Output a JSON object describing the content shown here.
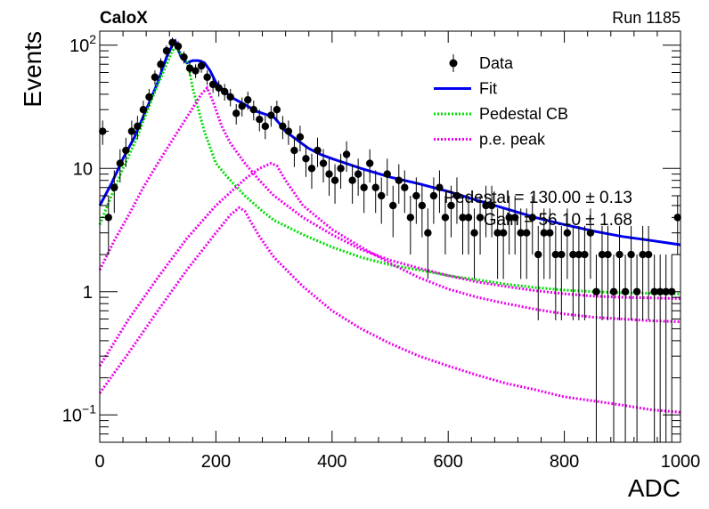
{
  "header": {
    "left_label": "CaloX",
    "right_label": "Run 1185"
  },
  "chart_data": {
    "type": "scatter",
    "xlabel": "ADC",
    "ylabel": "Events",
    "xlim": [
      0,
      1000
    ],
    "ylim": [
      0.06,
      130
    ],
    "y_log": true,
    "x_ticks": [
      0,
      200,
      400,
      600,
      800,
      1000
    ],
    "x_tick_labels": [
      "0",
      "200",
      "400",
      "600",
      "800",
      "1000"
    ],
    "y_ticks": [
      {
        "value": 100,
        "base": "10",
        "exp": "2"
      },
      {
        "value": 10,
        "base": "10",
        "exp": ""
      },
      {
        "value": 1,
        "base": "1",
        "exp": ""
      },
      {
        "value": 0.1,
        "base": "10",
        "exp": "−1"
      }
    ],
    "legend": {
      "placement": "top-right",
      "entries": [
        {
          "label": "Data",
          "style": "marker",
          "color": "#000000"
        },
        {
          "label": "Fit",
          "style": "solid",
          "color": "#0000ee"
        },
        {
          "label": "Pedestal CB",
          "style": "dotted",
          "color": "#00dd00"
        },
        {
          "label": "p.e. peak",
          "style": "dotted",
          "color": "#ee00ee"
        }
      ]
    },
    "annotations": [
      "Pedestal = 130.00 ± 0.13",
      "Gain = 56.10 ± 1.68"
    ],
    "data_x": [
      5,
      15,
      25,
      35,
      45,
      55,
      65,
      75,
      85,
      95,
      105,
      115,
      125,
      135,
      145,
      155,
      165,
      175,
      185,
      195,
      205,
      215,
      225,
      235,
      245,
      255,
      265,
      275,
      285,
      295,
      305,
      315,
      325,
      335,
      345,
      355,
      365,
      375,
      385,
      395,
      405,
      415,
      425,
      435,
      445,
      455,
      465,
      475,
      485,
      495,
      505,
      515,
      525,
      535,
      545,
      555,
      565,
      575,
      585,
      595,
      605,
      615,
      625,
      635,
      645,
      655,
      665,
      675,
      685,
      695,
      705,
      715,
      725,
      735,
      745,
      755,
      765,
      775,
      785,
      795,
      805,
      815,
      825,
      835,
      845,
      855,
      865,
      875,
      885,
      895,
      905,
      915,
      925,
      935,
      945,
      955,
      965,
      975,
      985,
      995
    ],
    "data_y": [
      20,
      4,
      7,
      11,
      14,
      20,
      22,
      30,
      38,
      55,
      70,
      90,
      105,
      98,
      80,
      65,
      62,
      68,
      55,
      48,
      45,
      42,
      38,
      28,
      32,
      36,
      30,
      25,
      22,
      27,
      30,
      22,
      20,
      14,
      18,
      12,
      10,
      14,
      11,
      9,
      8,
      10,
      13,
      8,
      9,
      7,
      11,
      7,
      6,
      9,
      5,
      8,
      7,
      4,
      6,
      5,
      3,
      6,
      7,
      4,
      5,
      6,
      4,
      4,
      3,
      4,
      5,
      5,
      3,
      3,
      4,
      4,
      3,
      3,
      4,
      2,
      3,
      3,
      2,
      2,
      3,
      2,
      2,
      2,
      3,
      1,
      2,
      2,
      1,
      2,
      1,
      2,
      1,
      2,
      2,
      1,
      1,
      1,
      1,
      4
    ],
    "series": [
      {
        "name": "Fit",
        "x": [
          0,
          20,
          40,
          60,
          80,
          100,
          115,
          125,
          130,
          140,
          150,
          160,
          170,
          180,
          190,
          200,
          215,
          230,
          250,
          270,
          290,
          300,
          310,
          320,
          340,
          360,
          380,
          400,
          450,
          500,
          550,
          600,
          650,
          700,
          750,
          800,
          850,
          900,
          950,
          1000
        ],
        "y": [
          5,
          7.5,
          12,
          18,
          30,
          50,
          80,
          100,
          108,
          80,
          72,
          75,
          75,
          72,
          62,
          50,
          42,
          37,
          33,
          29,
          27,
          26,
          23,
          20,
          17,
          14.5,
          13,
          12,
          10,
          8.5,
          7.5,
          6.5,
          5.5,
          4.7,
          4,
          3.5,
          3.1,
          2.8,
          2.6,
          2.4
        ]
      },
      {
        "name": "Pedestal CB",
        "x": [
          0,
          20,
          40,
          60,
          80,
          100,
          115,
          125,
          130,
          140,
          150,
          155,
          160,
          180,
          200,
          220,
          250,
          280,
          300,
          350,
          400,
          450,
          500,
          550,
          600,
          650,
          700,
          750,
          800,
          850,
          900,
          950,
          1000
        ],
        "y": [
          3.5,
          6,
          10,
          16,
          28,
          48,
          70,
          90,
          95,
          85,
          75,
          60,
          45,
          20,
          11,
          8.5,
          6,
          4.5,
          3.8,
          2.9,
          2.3,
          1.9,
          1.65,
          1.5,
          1.35,
          1.25,
          1.15,
          1.08,
          1.03,
          1,
          0.98,
          0.97,
          0.96
        ]
      },
      {
        "name": "p.e. peak",
        "x": [
          0,
          25,
          50,
          75,
          100,
          125,
          150,
          175,
          185,
          195,
          210,
          225,
          250,
          275,
          300,
          350,
          400,
          450,
          500,
          550,
          600,
          650,
          700,
          750,
          800,
          850,
          900,
          950,
          1000
        ],
        "y": [
          1.5,
          2.6,
          4.2,
          7,
          11,
          17,
          26,
          40,
          45,
          35,
          22,
          16,
          11,
          8,
          6,
          4,
          2.9,
          2.2,
          1.8,
          1.55,
          1.35,
          1.2,
          1.1,
          1.02,
          0.96,
          0.92,
          0.9,
          0.89,
          0.88
        ]
      },
      {
        "name": "p.e. peak",
        "x": [
          0,
          50,
          100,
          150,
          200,
          250,
          275,
          295,
          305,
          320,
          350,
          400,
          450,
          500,
          550,
          600,
          650,
          700,
          750,
          800,
          850,
          900,
          950,
          1000
        ],
        "y": [
          0.25,
          0.6,
          1.3,
          2.7,
          5,
          8.2,
          10,
          11,
          10.5,
          8,
          5,
          3.2,
          2.3,
          1.7,
          1.3,
          1.05,
          0.9,
          0.8,
          0.72,
          0.66,
          0.62,
          0.6,
          0.58,
          0.57
        ]
      },
      {
        "name": "p.e. peak",
        "x": [
          0,
          50,
          100,
          150,
          200,
          225,
          240,
          250,
          260,
          275,
          300,
          350,
          400,
          450,
          500,
          550,
          600,
          650,
          700,
          750,
          800,
          850,
          900,
          950,
          1000
        ],
        "y": [
          0.15,
          0.32,
          0.7,
          1.5,
          3,
          4.2,
          4.8,
          4.5,
          3.7,
          2.8,
          1.9,
          1.1,
          0.7,
          0.5,
          0.38,
          0.3,
          0.25,
          0.21,
          0.18,
          0.16,
          0.14,
          0.13,
          0.12,
          0.11,
          0.105
        ]
      }
    ]
  }
}
